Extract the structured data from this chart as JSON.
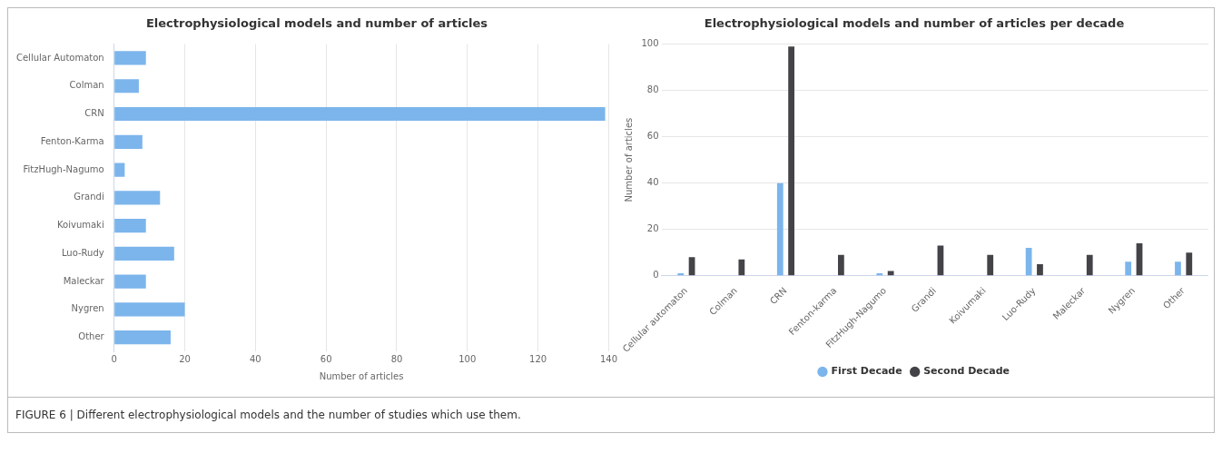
{
  "chart_data": [
    {
      "type": "bar",
      "orientation": "horizontal",
      "title": "Electrophysiological models and number of articles",
      "xlabel": "Number of articles",
      "categories": [
        "Cellular Automaton",
        "Colman",
        "CRN",
        "Fenton-Karma",
        "FitzHugh-Nagumo",
        "Grandi",
        "Koivumaki",
        "Luo-Rudy",
        "Maleckar",
        "Nygren",
        "Other"
      ],
      "values": [
        9,
        7,
        139,
        8,
        3,
        13,
        9,
        17,
        9,
        20,
        16
      ],
      "color": "#7cb5ec",
      "xlim": [
        0,
        140
      ],
      "xticks": [
        0,
        20,
        40,
        60,
        80,
        100,
        120,
        140
      ],
      "grid": "x",
      "legend": false,
      "annotations": [
        "FIGURE 6 | Different electrophysiological models and the number of studies which use them."
      ]
    },
    {
      "type": "bar",
      "title": "Electrophysiological models and number of articles per decade",
      "ylabel": "Number of articles",
      "categories": [
        "Cellular automaton",
        "Colman",
        "CRN",
        "Fenton-karma",
        "FitzHugh-Nagumo",
        "Grandi",
        "Koivumaki",
        "Luo-Rudy",
        "Maleckar",
        "Nygren",
        "Other"
      ],
      "series": [
        {
          "name": "First Decade",
          "color": "#7cb5ec",
          "values": [
            1,
            0,
            40,
            0,
            1,
            0,
            0,
            12,
            0,
            6,
            6
          ]
        },
        {
          "name": "Second Decade",
          "color": "#434348",
          "values": [
            8,
            7,
            99,
            9,
            2,
            13,
            9,
            5,
            9,
            14,
            10
          ]
        }
      ],
      "ylim": [
        0,
        100
      ],
      "yticks": [
        0,
        20,
        40,
        60,
        80,
        100
      ],
      "grid": "y",
      "legend": "bottom"
    }
  ]
}
